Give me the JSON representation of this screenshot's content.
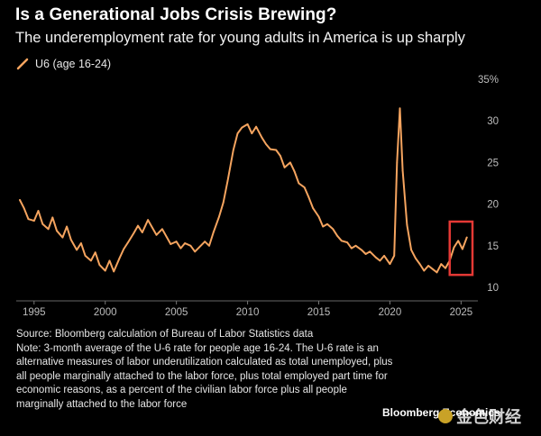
{
  "title": "Is a Generational Jobs Crisis Brewing?",
  "subtitle": "The underemployment rate for young adults in America is up sharply",
  "legend": {
    "label": "U6 (age 16-24)"
  },
  "colors": {
    "line": "#f5a45f",
    "highlight": "#e53935",
    "background": "#000000"
  },
  "chart_data": {
    "type": "line",
    "title": "Is a Generational Jobs Crisis Brewing?",
    "subtitle": "The underemployment rate for young adults in America is up sharply",
    "xlabel": "",
    "ylabel": "",
    "xlim": [
      1994,
      2025.8
    ],
    "ylim": [
      10,
      35
    ],
    "x_ticks": [
      "1995",
      "2000",
      "2005",
      "2010",
      "2015",
      "2020",
      "2025"
    ],
    "x_tick_values": [
      1995,
      2000,
      2005,
      2010,
      2015,
      2020,
      2025
    ],
    "y_ticks": [
      "10",
      "15",
      "20",
      "25",
      "30",
      "35%"
    ],
    "y_tick_values": [
      10,
      15,
      20,
      25,
      30,
      35
    ],
    "y_axis_position": "right",
    "grid": false,
    "legend_position": "top-left",
    "annotations": [
      "red box highlighting recent rise (2024-2025)"
    ],
    "highlight_box": {
      "x": [
        2024.2,
        2025.8
      ],
      "y": [
        11.5,
        17.9
      ]
    },
    "series": [
      {
        "name": "U6 (age 16-24)",
        "x": [
          1994.0,
          1994.3,
          1994.6,
          1995.0,
          1995.3,
          1995.6,
          1996.0,
          1996.3,
          1996.6,
          1997.0,
          1997.3,
          1997.6,
          1998.0,
          1998.3,
          1998.6,
          1999.0,
          1999.3,
          1999.6,
          2000.0,
          2000.3,
          2000.6,
          2001.0,
          2001.3,
          2001.6,
          2002.0,
          2002.3,
          2002.6,
          2003.0,
          2003.3,
          2003.6,
          2004.0,
          2004.3,
          2004.6,
          2005.0,
          2005.3,
          2005.6,
          2006.0,
          2006.3,
          2006.6,
          2007.0,
          2007.3,
          2007.6,
          2008.0,
          2008.3,
          2008.6,
          2009.0,
          2009.3,
          2009.6,
          2010.0,
          2010.3,
          2010.6,
          2011.0,
          2011.3,
          2011.6,
          2012.0,
          2012.3,
          2012.6,
          2013.0,
          2013.3,
          2013.6,
          2014.0,
          2014.3,
          2014.6,
          2015.0,
          2015.3,
          2015.6,
          2016.0,
          2016.3,
          2016.6,
          2017.0,
          2017.3,
          2017.6,
          2018.0,
          2018.3,
          2018.6,
          2019.0,
          2019.3,
          2019.6,
          2020.0,
          2020.3,
          2020.5,
          2020.7,
          2020.9,
          2021.2,
          2021.5,
          2021.8,
          2022.1,
          2022.4,
          2022.7,
          2023.0,
          2023.3,
          2023.6,
          2023.9,
          2024.2,
          2024.5,
          2024.8,
          2025.1,
          2025.4
        ],
        "values": [
          20.5,
          19.5,
          18.2,
          18.0,
          19.2,
          17.6,
          17.0,
          18.4,
          16.8,
          16.0,
          17.3,
          15.7,
          14.5,
          15.3,
          13.8,
          13.2,
          14.2,
          12.7,
          12.0,
          13.2,
          11.9,
          13.5,
          14.6,
          15.4,
          16.5,
          17.4,
          16.6,
          18.1,
          17.2,
          16.3,
          17.0,
          16.1,
          15.2,
          15.5,
          14.7,
          15.3,
          15.0,
          14.3,
          14.8,
          15.5,
          15.0,
          16.6,
          18.5,
          20.2,
          22.8,
          26.5,
          28.5,
          29.2,
          29.6,
          28.5,
          29.3,
          28.0,
          27.2,
          26.6,
          26.5,
          25.8,
          24.4,
          25.0,
          23.9,
          22.5,
          22.0,
          20.8,
          19.5,
          18.5,
          17.3,
          17.6,
          17.0,
          16.2,
          15.6,
          15.4,
          14.7,
          15.0,
          14.5,
          14.0,
          14.3,
          13.6,
          13.2,
          13.8,
          12.8,
          13.8,
          25.0,
          31.5,
          24.0,
          17.5,
          14.5,
          13.5,
          12.8,
          12.0,
          12.6,
          12.2,
          11.8,
          12.8,
          12.3,
          13.2,
          14.8,
          15.6,
          14.6,
          16.0
        ]
      }
    ]
  },
  "notes": {
    "source": "Source: Bloomberg calculation of Bureau of Labor Statistics data",
    "note": "Note: 3-month average of the U-6 rate for people age 16-24. The U-6 rate is an alternative measures of labor underutilization calculated as total unemployed, plus all people marginally attached to the labor force, plus total employed part time for economic reasons, as a percent of the civilian labor force plus all people marginally attached to the labor force"
  },
  "brand": "Bloomberg Economics",
  "watermark": "金色财经"
}
